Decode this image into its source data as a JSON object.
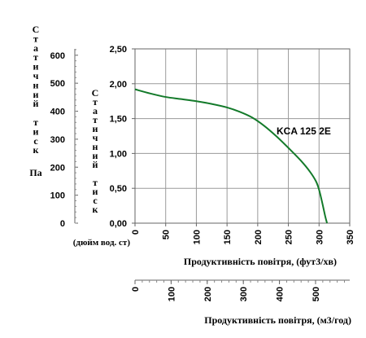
{
  "chart_data": {
    "type": "line",
    "series": [
      {
        "name": "KCA 125 2E",
        "color": "#137a2a",
        "x": [
          0,
          25,
          50,
          75,
          100,
          125,
          150,
          170,
          190,
          210,
          230,
          250,
          270,
          285,
          295,
          300,
          305,
          310,
          313
        ],
        "y": [
          1.92,
          1.86,
          1.81,
          1.78,
          1.75,
          1.71,
          1.66,
          1.6,
          1.52,
          1.4,
          1.25,
          1.08,
          0.9,
          0.74,
          0.6,
          0.48,
          0.3,
          0.1,
          0.0
        ]
      }
    ],
    "x_axis": {
      "ticks": [
        0,
        50,
        100,
        150,
        200,
        250,
        300,
        350
      ],
      "range": [
        0,
        350
      ],
      "label": "Продуктивність повітря, (фут3/хв)"
    },
    "x_axis_m3": {
      "ticks": [
        0,
        100,
        200,
        300,
        400,
        500
      ],
      "label": "Продуктивність повітря, (м3/год)",
      "range": [
        0,
        594.66
      ]
    },
    "y_axis_inwg": {
      "ticks": [
        "0,00",
        "0,50",
        "1,00",
        "1,50",
        "2,00",
        "2,50"
      ],
      "range": [
        0,
        2.5
      ],
      "label": "Статичний тиск",
      "unit": "(дюйм вод. ст)"
    },
    "y_axis_pa": {
      "ticks": [
        0,
        100,
        200,
        300,
        400,
        500,
        600
      ],
      "range": [
        0,
        622.7
      ],
      "label": "Статичний тиск",
      "unit": "Па"
    },
    "grid": true,
    "accent_color": "#137a2a"
  }
}
